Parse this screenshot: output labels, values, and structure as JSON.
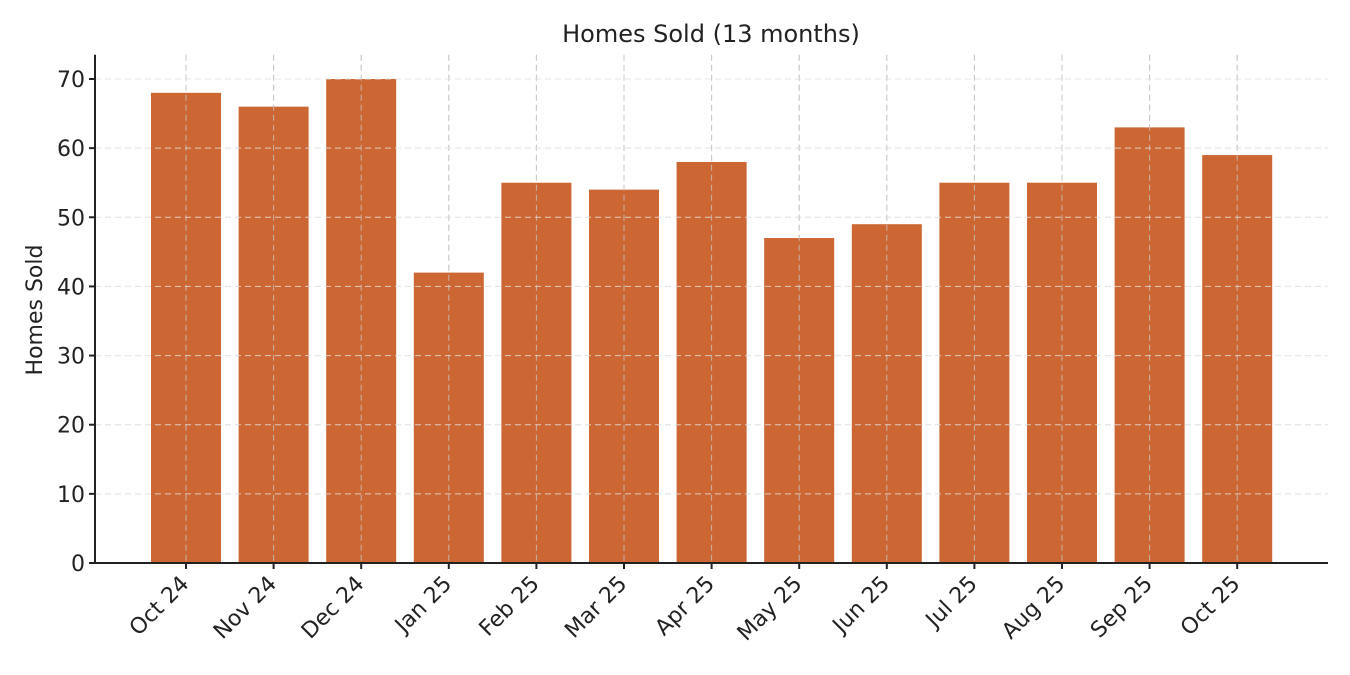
{
  "chart_data": {
    "type": "bar",
    "title": "Homes Sold (13 months)",
    "xlabel": "",
    "ylabel": "Homes Sold",
    "categories": [
      "Oct 24",
      "Nov 24",
      "Dec 24",
      "Jan 25",
      "Feb 25",
      "Mar 25",
      "Apr 25",
      "May 25",
      "Jun 25",
      "Jul 25",
      "Aug 25",
      "Sep 25",
      "Oct 25"
    ],
    "values": [
      68,
      66,
      70,
      42,
      55,
      54,
      58,
      47,
      49,
      55,
      55,
      63,
      59
    ],
    "ylim": [
      0,
      73.5
    ],
    "yticks": [
      0,
      10,
      20,
      30,
      40,
      50,
      60,
      70
    ],
    "grid": true,
    "legend": null,
    "bar_color": "#cc6633"
  }
}
